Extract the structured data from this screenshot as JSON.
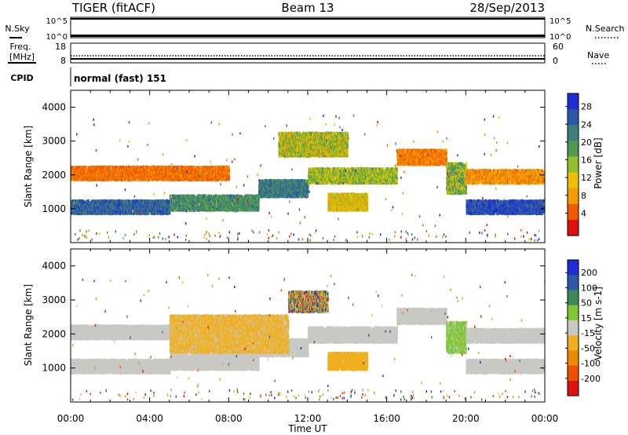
{
  "header": {
    "radar": "TIGER (fitACF)",
    "beam": "Beam 13",
    "date": "28/Sep/2013"
  },
  "nsky_panel": {
    "left_label": "N.Sky",
    "left_ticks": [
      "10^5",
      "10^0"
    ],
    "right_label": "N.Search",
    "right_ticks": [
      "10^5",
      "10^0"
    ]
  },
  "freq_panel": {
    "left_label_line1": "Freq.",
    "left_label_line2": "[MHz]",
    "left_ticks": [
      "18",
      "8"
    ],
    "right_label": "Nave",
    "right_ticks": [
      "60",
      "0"
    ]
  },
  "cpid": {
    "label": "CPID",
    "value": "normal (fast) 151"
  },
  "colors": {
    "power_scale": [
      "#1f2bd6",
      "#2b58a8",
      "#3f7f7a",
      "#4e9a4e",
      "#8fbf2a",
      "#f0c000",
      "#f59a00",
      "#f25a00",
      "#e01010"
    ],
    "velocity_scale": [
      "#1f2bd6",
      "#2b58a8",
      "#3c8a5a",
      "#80c832",
      "#c8c8c4",
      "#f0b020",
      "#f08a00",
      "#f05000",
      "#e01010"
    ]
  },
  "chart_data": [
    {
      "type": "heatmap",
      "name": "power",
      "ylabel": "Slant Range [km]",
      "yticks": [
        1000,
        2000,
        3000,
        4000
      ],
      "ylim": [
        0,
        4500
      ],
      "xlim_hours": [
        0,
        24
      ],
      "colorbar": {
        "label": "Power [dB]",
        "ticks": [
          "28",
          "24",
          "20",
          "16",
          "12",
          "8",
          "4"
        ],
        "range": [
          0,
          30
        ]
      },
      "echo_bands": [
        {
          "t0": 0.0,
          "t1": 5.0,
          "r0": 900,
          "r1": 1300,
          "v0": 20,
          "v1": 28
        },
        {
          "t0": 5.0,
          "t1": 9.5,
          "r0": 1000,
          "r1": 1450,
          "v0": 16,
          "v1": 24
        },
        {
          "t0": 9.5,
          "t1": 12.0,
          "r0": 1400,
          "r1": 1900,
          "v0": 18,
          "v1": 26
        },
        {
          "t0": 12.0,
          "t1": 16.5,
          "r0": 1800,
          "r1": 2250,
          "v0": 10,
          "v1": 20
        },
        {
          "t0": 16.5,
          "t1": 19.0,
          "r0": 2350,
          "r1": 2800,
          "v0": 4,
          "v1": 10
        },
        {
          "t0": 19.0,
          "t1": 20.0,
          "r0": 1500,
          "r1": 2400,
          "v0": 10,
          "v1": 22
        },
        {
          "t0": 20.0,
          "t1": 24.0,
          "r0": 900,
          "r1": 1300,
          "v0": 22,
          "v1": 30
        },
        {
          "t0": 0.0,
          "t1": 8.0,
          "r0": 1900,
          "r1": 2300,
          "v0": 4,
          "v1": 8
        },
        {
          "t0": 20.0,
          "t1": 24.0,
          "r0": 1800,
          "r1": 2200,
          "v0": 4,
          "v1": 12
        },
        {
          "t0": 10.5,
          "t1": 14.0,
          "r0": 2600,
          "r1": 3300,
          "v0": 8,
          "v1": 20
        },
        {
          "t0": 13.0,
          "t1": 15.0,
          "r0": 1000,
          "r1": 1500,
          "v0": 8,
          "v1": 16
        }
      ]
    },
    {
      "type": "heatmap",
      "name": "velocity",
      "ylabel": "Slant Range [km]",
      "yticks": [
        1000,
        2000,
        3000,
        4000
      ],
      "ylim": [
        0,
        4500
      ],
      "xlim_hours": [
        0,
        24
      ],
      "xlabel": "Time UT",
      "xticks": [
        "00:00",
        "04:00",
        "08:00",
        "12:00",
        "16:00",
        "20:00",
        "00:00"
      ],
      "colorbar": {
        "label": "Velocity [m s-1]",
        "ticks": [
          "200",
          "100",
          "50",
          "15",
          "-15",
          "-50",
          "-100",
          "-200"
        ],
        "range": [
          -250,
          250
        ]
      },
      "echo_bands": [
        {
          "t0": 0.0,
          "t1": 5.0,
          "r0": 900,
          "r1": 1300,
          "v0": -10,
          "v1": 10
        },
        {
          "t0": 5.0,
          "t1": 9.5,
          "r0": 1000,
          "r1": 1450,
          "v0": -10,
          "v1": 10
        },
        {
          "t0": 9.5,
          "t1": 12.0,
          "r0": 1400,
          "r1": 1900,
          "v0": -10,
          "v1": 10
        },
        {
          "t0": 12.0,
          "t1": 16.5,
          "r0": 1800,
          "r1": 2250,
          "v0": -10,
          "v1": 10
        },
        {
          "t0": 16.5,
          "t1": 19.0,
          "r0": 2350,
          "r1": 2800,
          "v0": -10,
          "v1": 10
        },
        {
          "t0": 19.0,
          "t1": 20.0,
          "r0": 1500,
          "r1": 2400,
          "v0": 20,
          "v1": 60
        },
        {
          "t0": 20.0,
          "t1": 24.0,
          "r0": 900,
          "r1": 1300,
          "v0": -10,
          "v1": 10
        },
        {
          "t0": 0.0,
          "t1": 8.0,
          "r0": 1900,
          "r1": 2300,
          "v0": -10,
          "v1": 10
        },
        {
          "t0": 20.0,
          "t1": 24.0,
          "r0": 1800,
          "r1": 2200,
          "v0": -10,
          "v1": 10
        },
        {
          "t0": 11.0,
          "t1": 13.0,
          "r0": 2700,
          "r1": 3300,
          "v0": -220,
          "v1": 220
        },
        {
          "t0": 13.0,
          "t1": 15.0,
          "r0": 1000,
          "r1": 1500,
          "v0": -80,
          "v1": -40
        },
        {
          "t0": 5.0,
          "t1": 11.0,
          "r0": 1500,
          "r1": 2600,
          "v0": -60,
          "v1": -20
        }
      ]
    }
  ]
}
